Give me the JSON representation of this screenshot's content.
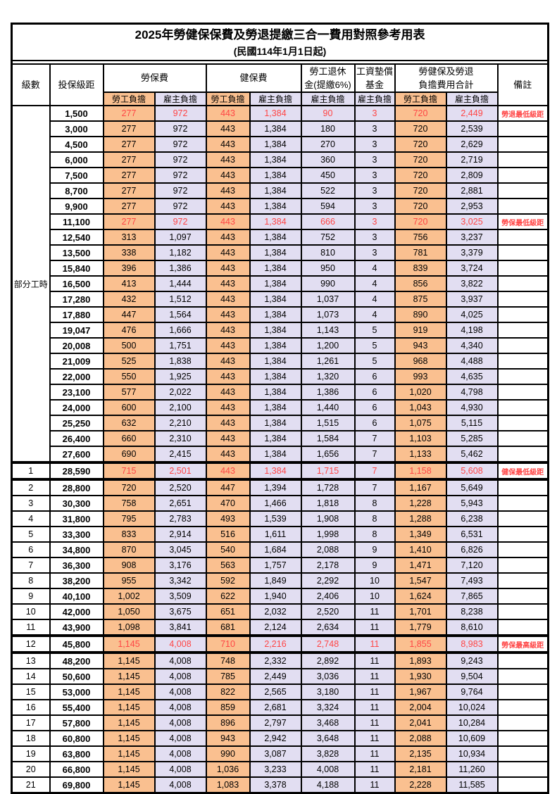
{
  "title": "2025年勞健保保費及勞退提繳三合一費用對照參考用表",
  "subtitle": "(民國114年1月1日起)",
  "header": {
    "level": "級數",
    "bracket": "投保級距",
    "labor_insurance": "勞保費",
    "health_insurance": "健保費",
    "pension_line1": "勞工退休",
    "pension_line2": "金(提繳6%)",
    "wage_fund_line1": "工資墊償",
    "wage_fund_line2": "基金",
    "total_line1": "勞健保及勞退",
    "total_line2": "負擔費用合計",
    "remark": "備註",
    "employee_burden": "勞工負擔",
    "employer_burden": "雇主負擔"
  },
  "part_time_label": "部分工時",
  "colors": {
    "employee_bg": "#FAC090",
    "employer_bg": "#E2DEF2",
    "highlight_text": "#FF4545",
    "border": "#000000"
  },
  "rows": [
    {
      "level": "",
      "bracket": "1,500",
      "values": [
        "277",
        "972",
        "443",
        "1,384",
        "90",
        "3",
        "720",
        "2,449"
      ],
      "remark": "勞退最低級距",
      "red": true,
      "thick": false
    },
    {
      "level": "",
      "bracket": "3,000",
      "values": [
        "277",
        "972",
        "443",
        "1,384",
        "180",
        "3",
        "720",
        "2,539"
      ],
      "remark": "",
      "red": false,
      "thick": false
    },
    {
      "level": "",
      "bracket": "4,500",
      "values": [
        "277",
        "972",
        "443",
        "1,384",
        "270",
        "3",
        "720",
        "2,629"
      ],
      "remark": "",
      "red": false,
      "thick": false
    },
    {
      "level": "",
      "bracket": "6,000",
      "values": [
        "277",
        "972",
        "443",
        "1,384",
        "360",
        "3",
        "720",
        "2,719"
      ],
      "remark": "",
      "red": false,
      "thick": false
    },
    {
      "level": "",
      "bracket": "7,500",
      "values": [
        "277",
        "972",
        "443",
        "1,384",
        "450",
        "3",
        "720",
        "2,809"
      ],
      "remark": "",
      "red": false,
      "thick": false
    },
    {
      "level": "",
      "bracket": "8,700",
      "values": [
        "277",
        "972",
        "443",
        "1,384",
        "522",
        "3",
        "720",
        "2,881"
      ],
      "remark": "",
      "red": false,
      "thick": false
    },
    {
      "level": "",
      "bracket": "9,900",
      "values": [
        "277",
        "972",
        "443",
        "1,384",
        "594",
        "3",
        "720",
        "2,953"
      ],
      "remark": "",
      "red": false,
      "thick": false
    },
    {
      "level": "",
      "bracket": "11,100",
      "values": [
        "277",
        "972",
        "443",
        "1,384",
        "666",
        "3",
        "720",
        "3,025"
      ],
      "remark": "勞保最低級距",
      "red": true,
      "thick": false
    },
    {
      "level": "",
      "bracket": "12,540",
      "values": [
        "313",
        "1,097",
        "443",
        "1,384",
        "752",
        "3",
        "756",
        "3,237"
      ],
      "remark": "",
      "red": false,
      "thick": false
    },
    {
      "level": "",
      "bracket": "13,500",
      "values": [
        "338",
        "1,182",
        "443",
        "1,384",
        "810",
        "3",
        "781",
        "3,379"
      ],
      "remark": "",
      "red": false,
      "thick": false
    },
    {
      "level": "",
      "bracket": "15,840",
      "values": [
        "396",
        "1,386",
        "443",
        "1,384",
        "950",
        "4",
        "839",
        "3,724"
      ],
      "remark": "",
      "red": false,
      "thick": false
    },
    {
      "level": "",
      "bracket": "16,500",
      "values": [
        "413",
        "1,444",
        "443",
        "1,384",
        "990",
        "4",
        "856",
        "3,822"
      ],
      "remark": "",
      "red": false,
      "thick": false
    },
    {
      "level": "",
      "bracket": "17,280",
      "values": [
        "432",
        "1,512",
        "443",
        "1,384",
        "1,037",
        "4",
        "875",
        "3,937"
      ],
      "remark": "",
      "red": false,
      "thick": false
    },
    {
      "level": "",
      "bracket": "17,880",
      "values": [
        "447",
        "1,564",
        "443",
        "1,384",
        "1,073",
        "4",
        "890",
        "4,025"
      ],
      "remark": "",
      "red": false,
      "thick": false
    },
    {
      "level": "",
      "bracket": "19,047",
      "values": [
        "476",
        "1,666",
        "443",
        "1,384",
        "1,143",
        "5",
        "919",
        "4,198"
      ],
      "remark": "",
      "red": false,
      "thick": false
    },
    {
      "level": "",
      "bracket": "20,008",
      "values": [
        "500",
        "1,751",
        "443",
        "1,384",
        "1,200",
        "5",
        "943",
        "4,340"
      ],
      "remark": "",
      "red": false,
      "thick": false
    },
    {
      "level": "",
      "bracket": "21,009",
      "values": [
        "525",
        "1,838",
        "443",
        "1,384",
        "1,261",
        "5",
        "968",
        "4,488"
      ],
      "remark": "",
      "red": false,
      "thick": false
    },
    {
      "level": "",
      "bracket": "22,000",
      "values": [
        "550",
        "1,925",
        "443",
        "1,384",
        "1,320",
        "6",
        "993",
        "4,635"
      ],
      "remark": "",
      "red": false,
      "thick": false
    },
    {
      "level": "",
      "bracket": "23,100",
      "values": [
        "577",
        "2,022",
        "443",
        "1,384",
        "1,386",
        "6",
        "1,020",
        "4,798"
      ],
      "remark": "",
      "red": false,
      "thick": false
    },
    {
      "level": "",
      "bracket": "24,000",
      "values": [
        "600",
        "2,100",
        "443",
        "1,384",
        "1,440",
        "6",
        "1,043",
        "4,930"
      ],
      "remark": "",
      "red": false,
      "thick": false
    },
    {
      "level": "",
      "bracket": "25,250",
      "values": [
        "632",
        "2,210",
        "443",
        "1,384",
        "1,515",
        "6",
        "1,075",
        "5,115"
      ],
      "remark": "",
      "red": false,
      "thick": false
    },
    {
      "level": "",
      "bracket": "26,400",
      "values": [
        "660",
        "2,310",
        "443",
        "1,384",
        "1,584",
        "7",
        "1,103",
        "5,285"
      ],
      "remark": "",
      "red": false,
      "thick": false
    },
    {
      "level": "",
      "bracket": "27,600",
      "values": [
        "690",
        "2,415",
        "443",
        "1,384",
        "1,656",
        "7",
        "1,133",
        "5,462"
      ],
      "remark": "",
      "red": false,
      "thick": false
    },
    {
      "level": "1",
      "bracket": "28,590",
      "values": [
        "715",
        "2,501",
        "443",
        "1,384",
        "1,715",
        "7",
        "1,158",
        "5,608"
      ],
      "remark": "健保最低級距",
      "red": true,
      "thick": true
    },
    {
      "level": "2",
      "bracket": "28,800",
      "values": [
        "720",
        "2,520",
        "447",
        "1,394",
        "1,728",
        "7",
        "1,167",
        "5,649"
      ],
      "remark": "",
      "red": false,
      "thick": false
    },
    {
      "level": "3",
      "bracket": "30,300",
      "values": [
        "758",
        "2,651",
        "470",
        "1,466",
        "1,818",
        "8",
        "1,228",
        "5,943"
      ],
      "remark": "",
      "red": false,
      "thick": false
    },
    {
      "level": "4",
      "bracket": "31,800",
      "values": [
        "795",
        "2,783",
        "493",
        "1,539",
        "1,908",
        "8",
        "1,288",
        "6,238"
      ],
      "remark": "",
      "red": false,
      "thick": false
    },
    {
      "level": "5",
      "bracket": "33,300",
      "values": [
        "833",
        "2,914",
        "516",
        "1,611",
        "1,998",
        "8",
        "1,349",
        "6,531"
      ],
      "remark": "",
      "red": false,
      "thick": false
    },
    {
      "level": "6",
      "bracket": "34,800",
      "values": [
        "870",
        "3,045",
        "540",
        "1,684",
        "2,088",
        "9",
        "1,410",
        "6,826"
      ],
      "remark": "",
      "red": false,
      "thick": false
    },
    {
      "level": "7",
      "bracket": "36,300",
      "values": [
        "908",
        "3,176",
        "563",
        "1,757",
        "2,178",
        "9",
        "1,471",
        "7,120"
      ],
      "remark": "",
      "red": false,
      "thick": false
    },
    {
      "level": "8",
      "bracket": "38,200",
      "values": [
        "955",
        "3,342",
        "592",
        "1,849",
        "2,292",
        "10",
        "1,547",
        "7,493"
      ],
      "remark": "",
      "red": false,
      "thick": false
    },
    {
      "level": "9",
      "bracket": "40,100",
      "values": [
        "1,002",
        "3,509",
        "622",
        "1,940",
        "2,406",
        "10",
        "1,624",
        "7,865"
      ],
      "remark": "",
      "red": false,
      "thick": false
    },
    {
      "level": "10",
      "bracket": "42,000",
      "values": [
        "1,050",
        "3,675",
        "651",
        "2,032",
        "2,520",
        "11",
        "1,701",
        "8,238"
      ],
      "remark": "",
      "red": false,
      "thick": false
    },
    {
      "level": "11",
      "bracket": "43,900",
      "values": [
        "1,098",
        "3,841",
        "681",
        "2,124",
        "2,634",
        "11",
        "1,779",
        "8,610"
      ],
      "remark": "",
      "red": false,
      "thick": false
    },
    {
      "level": "12",
      "bracket": "45,800",
      "values": [
        "1,145",
        "4,008",
        "710",
        "2,216",
        "2,748",
        "11",
        "1,855",
        "8,983"
      ],
      "remark": "勞保最高級距",
      "red": true,
      "thick": true
    },
    {
      "level": "13",
      "bracket": "48,200",
      "values": [
        "1,145",
        "4,008",
        "748",
        "2,332",
        "2,892",
        "11",
        "1,893",
        "9,243"
      ],
      "remark": "",
      "red": false,
      "thick": false
    },
    {
      "level": "14",
      "bracket": "50,600",
      "values": [
        "1,145",
        "4,008",
        "785",
        "2,449",
        "3,036",
        "11",
        "1,930",
        "9,504"
      ],
      "remark": "",
      "red": false,
      "thick": false
    },
    {
      "level": "15",
      "bracket": "53,000",
      "values": [
        "1,145",
        "4,008",
        "822",
        "2,565",
        "3,180",
        "11",
        "1,967",
        "9,764"
      ],
      "remark": "",
      "red": false,
      "thick": false
    },
    {
      "level": "16",
      "bracket": "55,400",
      "values": [
        "1,145",
        "4,008",
        "859",
        "2,681",
        "3,324",
        "11",
        "2,004",
        "10,024"
      ],
      "remark": "",
      "red": false,
      "thick": false
    },
    {
      "level": "17",
      "bracket": "57,800",
      "values": [
        "1,145",
        "4,008",
        "896",
        "2,797",
        "3,468",
        "11",
        "2,041",
        "10,284"
      ],
      "remark": "",
      "red": false,
      "thick": false
    },
    {
      "level": "18",
      "bracket": "60,800",
      "values": [
        "1,145",
        "4,008",
        "943",
        "2,942",
        "3,648",
        "11",
        "2,088",
        "10,609"
      ],
      "remark": "",
      "red": false,
      "thick": false
    },
    {
      "level": "19",
      "bracket": "63,800",
      "values": [
        "1,145",
        "4,008",
        "990",
        "3,087",
        "3,828",
        "11",
        "2,135",
        "10,934"
      ],
      "remark": "",
      "red": false,
      "thick": false
    },
    {
      "level": "20",
      "bracket": "66,800",
      "values": [
        "1,145",
        "4,008",
        "1,036",
        "3,233",
        "4,008",
        "11",
        "2,181",
        "11,260"
      ],
      "remark": "",
      "red": false,
      "thick": false
    },
    {
      "level": "21",
      "bracket": "69,800",
      "values": [
        "1,145",
        "4,008",
        "1,083",
        "3,378",
        "4,188",
        "11",
        "2,228",
        "11,585"
      ],
      "remark": "",
      "red": false,
      "thick": false
    }
  ],
  "part_time_row_span": 23
}
